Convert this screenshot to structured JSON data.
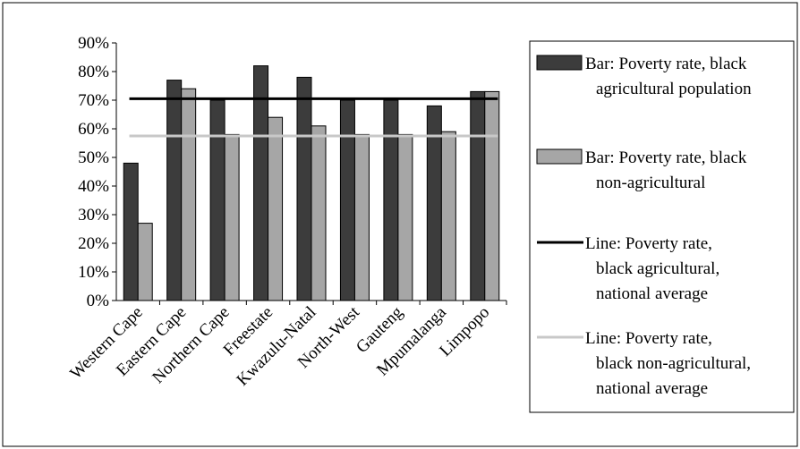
{
  "chart_data": {
    "type": "bar",
    "title": "",
    "xlabel": "",
    "ylabel": "",
    "ylim": [
      0,
      90
    ],
    "yticks": [
      "0%",
      "10%",
      "20%",
      "30%",
      "40%",
      "50%",
      "60%",
      "70%",
      "80%",
      "90%"
    ],
    "categories": [
      "Western Cape",
      "Eastern Cape",
      "Northern Cape",
      "Freestate",
      "Kwazulu-Natal",
      "North-West",
      "Gauteng",
      "Mpumalanga",
      "Limpopo"
    ],
    "series": [
      {
        "name": "Bar: Poverty rate, black agricultural population",
        "kind": "bar",
        "color": "#3c3c3c",
        "values": [
          48,
          77,
          70,
          82,
          78,
          70,
          70,
          68,
          73
        ]
      },
      {
        "name": "Bar: Poverty rate, black non-agricultural",
        "kind": "bar",
        "color": "#a6a6a6",
        "values": [
          27,
          74,
          58,
          64,
          61,
          58,
          58,
          59,
          73
        ]
      },
      {
        "name": "Line: Poverty rate, black agricultural, national average",
        "kind": "line",
        "color": "#000000",
        "value": 70.5
      },
      {
        "name": "Line: Poverty rate, black non-agricultural, national average",
        "kind": "line",
        "color": "#c8c8c8",
        "value": 57.5
      }
    ],
    "legend_position": "right",
    "grid": false
  },
  "legend": {
    "items": [
      {
        "lines": [
          "Bar: Poverty rate, black",
          "agricultural population"
        ]
      },
      {
        "lines": [
          "Bar: Poverty rate, black",
          "non-agricultural"
        ]
      },
      {
        "lines": [
          "Line: Poverty rate,",
          "black agricultural,",
          "national average"
        ]
      },
      {
        "lines": [
          "Line: Poverty rate,",
          "black non-agricultural,",
          "national average"
        ]
      }
    ]
  }
}
